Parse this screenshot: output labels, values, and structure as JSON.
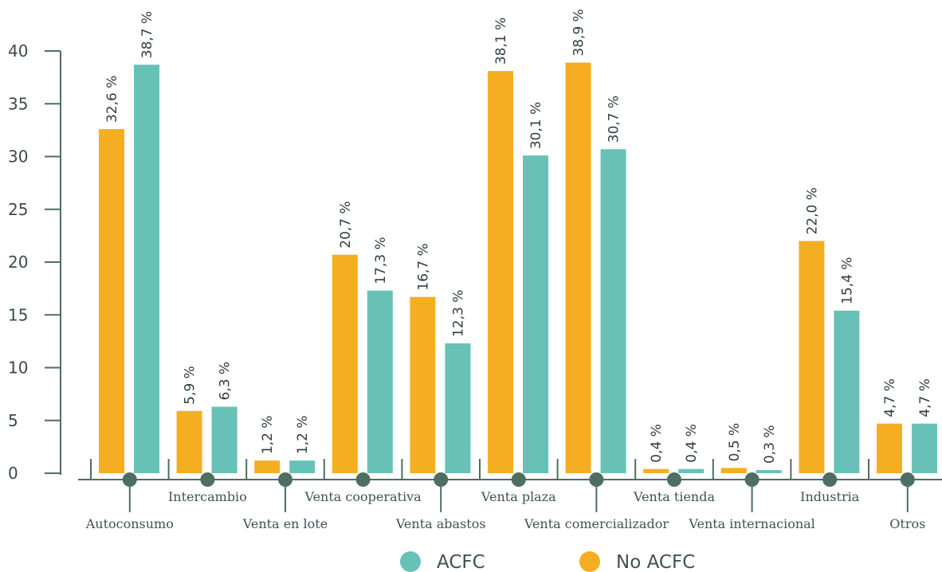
{
  "chart_data": {
    "type": "bar",
    "categories": [
      "Autoconsumo",
      "Intercambio",
      "Venta en lote",
      "Venta cooperativa",
      "Venta abastos",
      "Venta plaza",
      "Venta comercializador",
      "Venta tienda",
      "Venta internacional",
      "Industria",
      "Otros"
    ],
    "series": [
      {
        "name": "No ACFC",
        "color": "#f5ae22",
        "values": [
          32.6,
          5.9,
          1.2,
          20.7,
          16.7,
          38.1,
          38.9,
          0.4,
          0.5,
          22.0,
          4.7
        ],
        "labels": [
          "32,6 %",
          "5,9 %",
          "1,2 %",
          "20,7 %",
          "16,7 %",
          "38,1 %",
          "38,9 %",
          "0,4 %",
          "0,5 %",
          "22,0 %",
          "4,7 %"
        ]
      },
      {
        "name": "ACFC",
        "color": "#68c1b7",
        "values": [
          38.7,
          6.3,
          1.2,
          17.3,
          12.3,
          30.1,
          30.7,
          0.4,
          0.3,
          15.4,
          4.7
        ],
        "labels": [
          "38,7 %",
          "6,3 %",
          "1,2 %",
          "17,3 %",
          "12,3 %",
          "30,1 %",
          "30,7 %",
          "0,4 %",
          "0,3 %",
          "15,4 %",
          "4,7 %"
        ]
      }
    ],
    "yticks": [
      "0",
      "5",
      "10",
      "15",
      "20",
      "25",
      "30",
      "35",
      "40"
    ],
    "ylim": [
      0,
      40
    ],
    "title": "",
    "xlabel": "",
    "ylabel": "",
    "grid": false,
    "legend": {
      "placement": "bottom-center",
      "order": [
        "ACFC",
        "No ACFC"
      ]
    },
    "axis_color": "#4d6e60"
  }
}
